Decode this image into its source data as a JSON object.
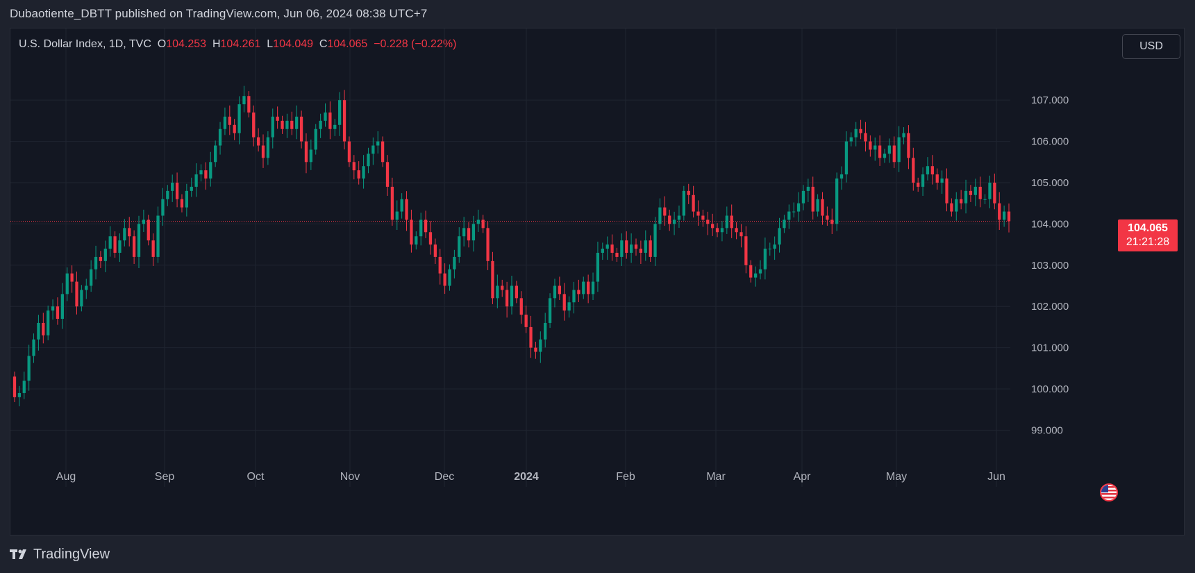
{
  "publisher_line": "Dubaotiente_DBTT published on TradingView.com, Jun 06, 2024 08:38 UTC+7",
  "legend": {
    "symbol": "U.S. Dollar Index, 1D, TVC",
    "open_label": "O",
    "open": "104.253",
    "high_label": "H",
    "high": "104.261",
    "low_label": "L",
    "low": "104.049",
    "close_label": "C",
    "close": "104.065",
    "change": "−0.228 (−0.22%)"
  },
  "currency_button": "USD",
  "price_badge": {
    "price": "104.065",
    "countdown": "21:21:28"
  },
  "brand": "TradingView",
  "icons": {
    "flag": "us-flag-icon",
    "logo": "tradingview-logo-icon"
  },
  "colors": {
    "background": "#131722",
    "grid": "#1f2430",
    "text": "#b2b5be",
    "up": "#089981",
    "down": "#f23645",
    "price_line": "#f23645"
  },
  "chart_data": {
    "type": "candlestick",
    "title": "U.S. Dollar Index, 1D, TVC",
    "xlabel": "",
    "ylabel": "",
    "ylim": [
      98.3,
      108.4
    ],
    "y_ticks": [
      "107.000",
      "106.000",
      "105.000",
      "104.000",
      "103.000",
      "102.000",
      "101.000",
      "100.000",
      "99.000"
    ],
    "x_ticks": [
      "Aug",
      "Sep",
      "Oct",
      "Nov",
      "Dec",
      "2024",
      "Feb",
      "Mar",
      "Apr",
      "May",
      "Jun"
    ],
    "last_price": 104.065,
    "series": [
      {
        "name": "",
        "closes": [
          99.8,
          99.9,
          100.2,
          100.8,
          101.2,
          101.6,
          101.3,
          101.9,
          102.0,
          101.7,
          102.3,
          102.8,
          102.6,
          102.0,
          102.4,
          102.5,
          102.9,
          103.2,
          103.1,
          103.4,
          103.7,
          103.3,
          103.6,
          103.9,
          103.7,
          103.2,
          104.0,
          104.1,
          103.6,
          103.2,
          104.2,
          104.6,
          104.8,
          105.0,
          104.6,
          104.4,
          104.8,
          104.9,
          105.2,
          105.3,
          105.1,
          105.5,
          105.9,
          106.3,
          106.6,
          106.4,
          106.2,
          106.9,
          107.1,
          106.7,
          106.1,
          105.9,
          105.6,
          106.1,
          106.6,
          106.5,
          106.3,
          106.5,
          106.3,
          106.6,
          106.0,
          105.5,
          105.8,
          106.3,
          106.5,
          106.7,
          106.3,
          106.4,
          107.0,
          106.0,
          105.5,
          105.3,
          105.1,
          105.4,
          105.7,
          105.9,
          106.0,
          105.5,
          104.9,
          104.1,
          104.3,
          104.6,
          104.1,
          103.5,
          103.7,
          104.1,
          103.8,
          103.5,
          103.2,
          102.8,
          102.5,
          102.9,
          103.2,
          103.7,
          103.9,
          103.6,
          104.0,
          104.1,
          103.9,
          103.1,
          102.2,
          102.5,
          102.4,
          102.0,
          102.5,
          102.2,
          101.8,
          101.5,
          101.0,
          100.9,
          101.2,
          101.6,
          102.2,
          102.5,
          102.3,
          101.9,
          102.1,
          102.4,
          102.3,
          102.6,
          102.3,
          102.6,
          103.3,
          103.4,
          103.5,
          103.3,
          103.2,
          103.6,
          103.3,
          103.5,
          103.4,
          103.3,
          103.6,
          103.2,
          104.0,
          104.4,
          104.2,
          104.0,
          104.1,
          104.2,
          104.8,
          104.7,
          104.3,
          104.2,
          104.1,
          104.0,
          103.9,
          103.8,
          103.9,
          104.2,
          103.9,
          103.8,
          103.7,
          103.0,
          102.7,
          102.8,
          102.9,
          103.4,
          103.4,
          103.5,
          103.9,
          104.1,
          104.3,
          104.3,
          104.5,
          104.8,
          104.9,
          104.3,
          104.6,
          104.2,
          104.1,
          104.0,
          105.1,
          105.2,
          106.0,
          106.1,
          106.3,
          106.2,
          106.0,
          105.8,
          105.9,
          105.6,
          105.7,
          105.9,
          105.5,
          106.1,
          106.2,
          105.6,
          105.0,
          104.9,
          105.2,
          105.4,
          105.2,
          105.0,
          105.1,
          104.5,
          104.3,
          104.6,
          104.5,
          104.8,
          104.7,
          104.9,
          104.6,
          104.6,
          105.0,
          104.5,
          104.1,
          104.3,
          104.065
        ]
      }
    ]
  }
}
